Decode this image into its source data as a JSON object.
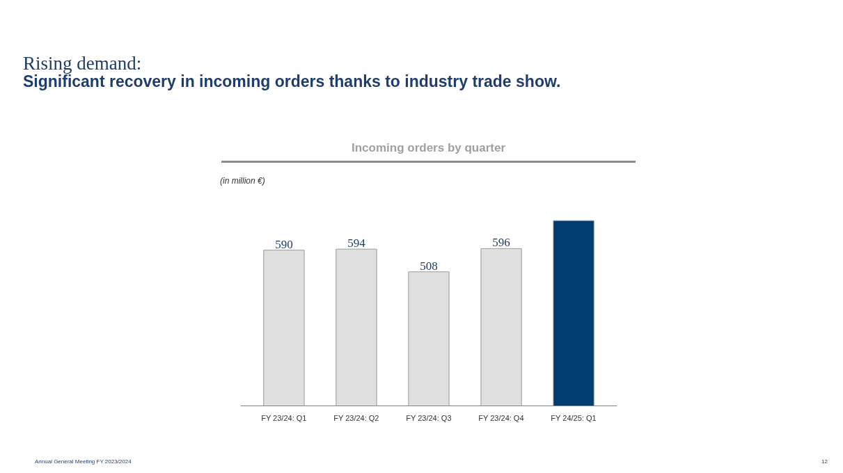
{
  "chart_data": {
    "type": "bar",
    "title": "Incoming orders by quarter",
    "categories": [
      "FY 23/24: Q1",
      "FY 23/24: Q2",
      "FY 23/24: Q3",
      "FY 23/24: Q4",
      "FY 24/25: Q1"
    ],
    "values": [
      590,
      594,
      508,
      596,
      702
    ],
    "colors": [
      "#e0e0e0",
      "#e0e0e0",
      "#e0e0e0",
      "#e0e0e0",
      "#003d6e"
    ],
    "value_labels": [
      "590",
      "594",
      "508",
      "596",
      null
    ],
    "grid": false,
    "annotations": [
      "Rising demand:",
      "Significant recovery in incoming orders thanks to industry trade show.",
      "(in million €)",
      "Annual General Meeting FY 2023/2024",
      "12"
    ]
  }
}
